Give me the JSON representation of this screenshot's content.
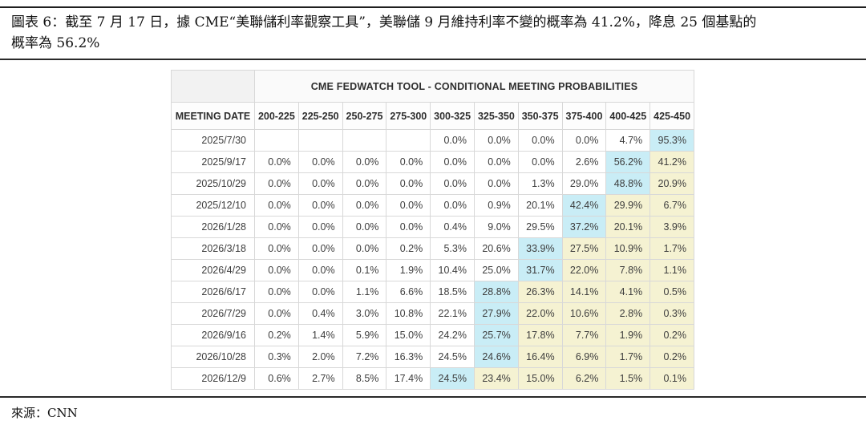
{
  "page": {
    "caption": {
      "lines": [
        "圖表 6：截至 7 月 17 日，據 CME“美聯儲利率觀察工具”，美聯儲 9 月維持利率不變的概率為 41.2%，降息 25 個基點的",
        "概率為 56.2%"
      ]
    },
    "footer": {
      "source": "來源：CNN"
    }
  },
  "table": {
    "title": "CME FEDWATCH TOOL - CONDITIONAL MEETING PROBABILITIES",
    "corner_label": "MEETING DATE",
    "columns": [
      "200-225",
      "225-250",
      "250-275",
      "275-300",
      "300-325",
      "325-350",
      "350-375",
      "375-400",
      "400-425",
      "425-450"
    ],
    "colors": {
      "highlight_cyan": "#c9edf6",
      "highlight_yellow": "#f5f2d2"
    },
    "rows": [
      {
        "date": "2025/7/30",
        "values": [
          "",
          "",
          "",
          "",
          "0.0%",
          "0.0%",
          "0.0%",
          "0.0%",
          "4.7%",
          "95.3%"
        ],
        "marks": [
          "",
          "",
          "",
          "",
          "",
          "",
          "",
          "",
          "",
          "c"
        ]
      },
      {
        "date": "2025/9/17",
        "values": [
          "0.0%",
          "0.0%",
          "0.0%",
          "0.0%",
          "0.0%",
          "0.0%",
          "0.0%",
          "2.6%",
          "56.2%",
          "41.2%"
        ],
        "marks": [
          "",
          "",
          "",
          "",
          "",
          "",
          "",
          "",
          "c",
          "y"
        ]
      },
      {
        "date": "2025/10/29",
        "values": [
          "0.0%",
          "0.0%",
          "0.0%",
          "0.0%",
          "0.0%",
          "0.0%",
          "1.3%",
          "29.0%",
          "48.8%",
          "20.9%"
        ],
        "marks": [
          "",
          "",
          "",
          "",
          "",
          "",
          "",
          "",
          "c",
          "y"
        ]
      },
      {
        "date": "2025/12/10",
        "values": [
          "0.0%",
          "0.0%",
          "0.0%",
          "0.0%",
          "0.0%",
          "0.9%",
          "20.1%",
          "42.4%",
          "29.9%",
          "6.7%"
        ],
        "marks": [
          "",
          "",
          "",
          "",
          "",
          "",
          "",
          "c",
          "y",
          "y"
        ]
      },
      {
        "date": "2026/1/28",
        "values": [
          "0.0%",
          "0.0%",
          "0.0%",
          "0.0%",
          "0.4%",
          "9.0%",
          "29.5%",
          "37.2%",
          "20.1%",
          "3.9%"
        ],
        "marks": [
          "",
          "",
          "",
          "",
          "",
          "",
          "",
          "c",
          "y",
          "y"
        ]
      },
      {
        "date": "2026/3/18",
        "values": [
          "0.0%",
          "0.0%",
          "0.0%",
          "0.2%",
          "5.3%",
          "20.6%",
          "33.9%",
          "27.5%",
          "10.9%",
          "1.7%"
        ],
        "marks": [
          "",
          "",
          "",
          "",
          "",
          "",
          "c",
          "y",
          "y",
          "y"
        ]
      },
      {
        "date": "2026/4/29",
        "values": [
          "0.0%",
          "0.0%",
          "0.1%",
          "1.9%",
          "10.4%",
          "25.0%",
          "31.7%",
          "22.0%",
          "7.8%",
          "1.1%"
        ],
        "marks": [
          "",
          "",
          "",
          "",
          "",
          "",
          "c",
          "y",
          "y",
          "y"
        ]
      },
      {
        "date": "2026/6/17",
        "values": [
          "0.0%",
          "0.0%",
          "1.1%",
          "6.6%",
          "18.5%",
          "28.8%",
          "26.3%",
          "14.1%",
          "4.1%",
          "0.5%"
        ],
        "marks": [
          "",
          "",
          "",
          "",
          "",
          "c",
          "y",
          "y",
          "y",
          "y"
        ]
      },
      {
        "date": "2026/7/29",
        "values": [
          "0.0%",
          "0.4%",
          "3.0%",
          "10.8%",
          "22.1%",
          "27.9%",
          "22.0%",
          "10.6%",
          "2.8%",
          "0.3%"
        ],
        "marks": [
          "",
          "",
          "",
          "",
          "",
          "c",
          "y",
          "y",
          "y",
          "y"
        ]
      },
      {
        "date": "2026/9/16",
        "values": [
          "0.2%",
          "1.4%",
          "5.9%",
          "15.0%",
          "24.2%",
          "25.7%",
          "17.8%",
          "7.7%",
          "1.9%",
          "0.2%"
        ],
        "marks": [
          "",
          "",
          "",
          "",
          "",
          "c",
          "y",
          "y",
          "y",
          "y"
        ]
      },
      {
        "date": "2026/10/28",
        "values": [
          "0.3%",
          "2.0%",
          "7.2%",
          "16.3%",
          "24.5%",
          "24.6%",
          "16.4%",
          "6.9%",
          "1.7%",
          "0.2%"
        ],
        "marks": [
          "",
          "",
          "",
          "",
          "",
          "c",
          "y",
          "y",
          "y",
          "y"
        ]
      },
      {
        "date": "2026/12/9",
        "values": [
          "0.6%",
          "2.7%",
          "8.5%",
          "17.4%",
          "24.5%",
          "23.4%",
          "15.0%",
          "6.2%",
          "1.5%",
          "0.1%"
        ],
        "marks": [
          "",
          "",
          "",
          "",
          "c",
          "y",
          "y",
          "y",
          "y",
          "y"
        ]
      }
    ]
  }
}
